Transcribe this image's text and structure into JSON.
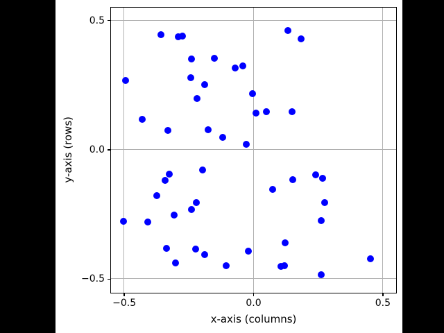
{
  "window": {
    "canvas_background": "#000000",
    "figure_background": "#ffffff"
  },
  "chart_data": {
    "type": "scatter",
    "title": "",
    "xlabel": "x-axis (columns)",
    "ylabel": "y-axis (rows)",
    "xlim": [
      -0.55,
      0.55
    ],
    "ylim": [
      -0.55,
      0.55
    ],
    "xticks": [
      -0.5,
      0.0,
      0.5
    ],
    "yticks": [
      -0.5,
      0.0,
      0.5
    ],
    "xtick_labels": [
      "−0.5",
      "0.0",
      "0.5"
    ],
    "ytick_labels": [
      "−0.5",
      "0.0",
      "0.5"
    ],
    "grid": true,
    "legend": "none",
    "marker": "circle",
    "marker_color": "#0000ff",
    "marker_size_px": 10,
    "grid_color": "#b0b0b0",
    "spine_color": "#000000",
    "points": [
      [
        -0.358,
        0.445
      ],
      [
        -0.291,
        0.435
      ],
      [
        -0.274,
        0.44
      ],
      [
        -0.495,
        0.266
      ],
      [
        -0.24,
        0.351
      ],
      [
        -0.149,
        0.353
      ],
      [
        -0.241,
        0.279
      ],
      [
        -0.189,
        0.25
      ],
      [
        -0.216,
        0.196
      ],
      [
        -0.429,
        0.116
      ],
      [
        -0.329,
        0.075
      ],
      [
        -0.175,
        0.077
      ],
      [
        -0.119,
        0.046
      ],
      [
        0.133,
        0.461
      ],
      [
        0.184,
        0.427
      ],
      [
        -0.069,
        0.314
      ],
      [
        -0.041,
        0.324
      ],
      [
        -0.004,
        0.217
      ],
      [
        0.01,
        0.142
      ],
      [
        0.052,
        0.147
      ],
      [
        0.149,
        0.147
      ],
      [
        -0.028,
        0.02
      ],
      [
        -0.325,
        -0.094
      ],
      [
        -0.342,
        -0.119
      ],
      [
        -0.197,
        -0.078
      ],
      [
        -0.374,
        -0.179
      ],
      [
        -0.221,
        -0.204
      ],
      [
        -0.24,
        -0.233
      ],
      [
        -0.307,
        -0.253
      ],
      [
        -0.502,
        -0.278
      ],
      [
        -0.407,
        -0.281
      ],
      [
        -0.335,
        -0.381
      ],
      [
        -0.222,
        -0.384
      ],
      [
        -0.187,
        -0.407
      ],
      [
        -0.3,
        -0.438
      ],
      [
        0.241,
        -0.098
      ],
      [
        0.267,
        -0.11
      ],
      [
        0.154,
        -0.118
      ],
      [
        0.074,
        -0.153
      ],
      [
        0.277,
        -0.206
      ],
      [
        0.262,
        -0.276
      ],
      [
        0.123,
        -0.36
      ],
      [
        -0.02,
        -0.393
      ],
      [
        -0.105,
        -0.45
      ],
      [
        0.106,
        -0.453
      ],
      [
        0.122,
        -0.449
      ],
      [
        0.263,
        -0.484
      ],
      [
        0.453,
        -0.422
      ]
    ]
  }
}
